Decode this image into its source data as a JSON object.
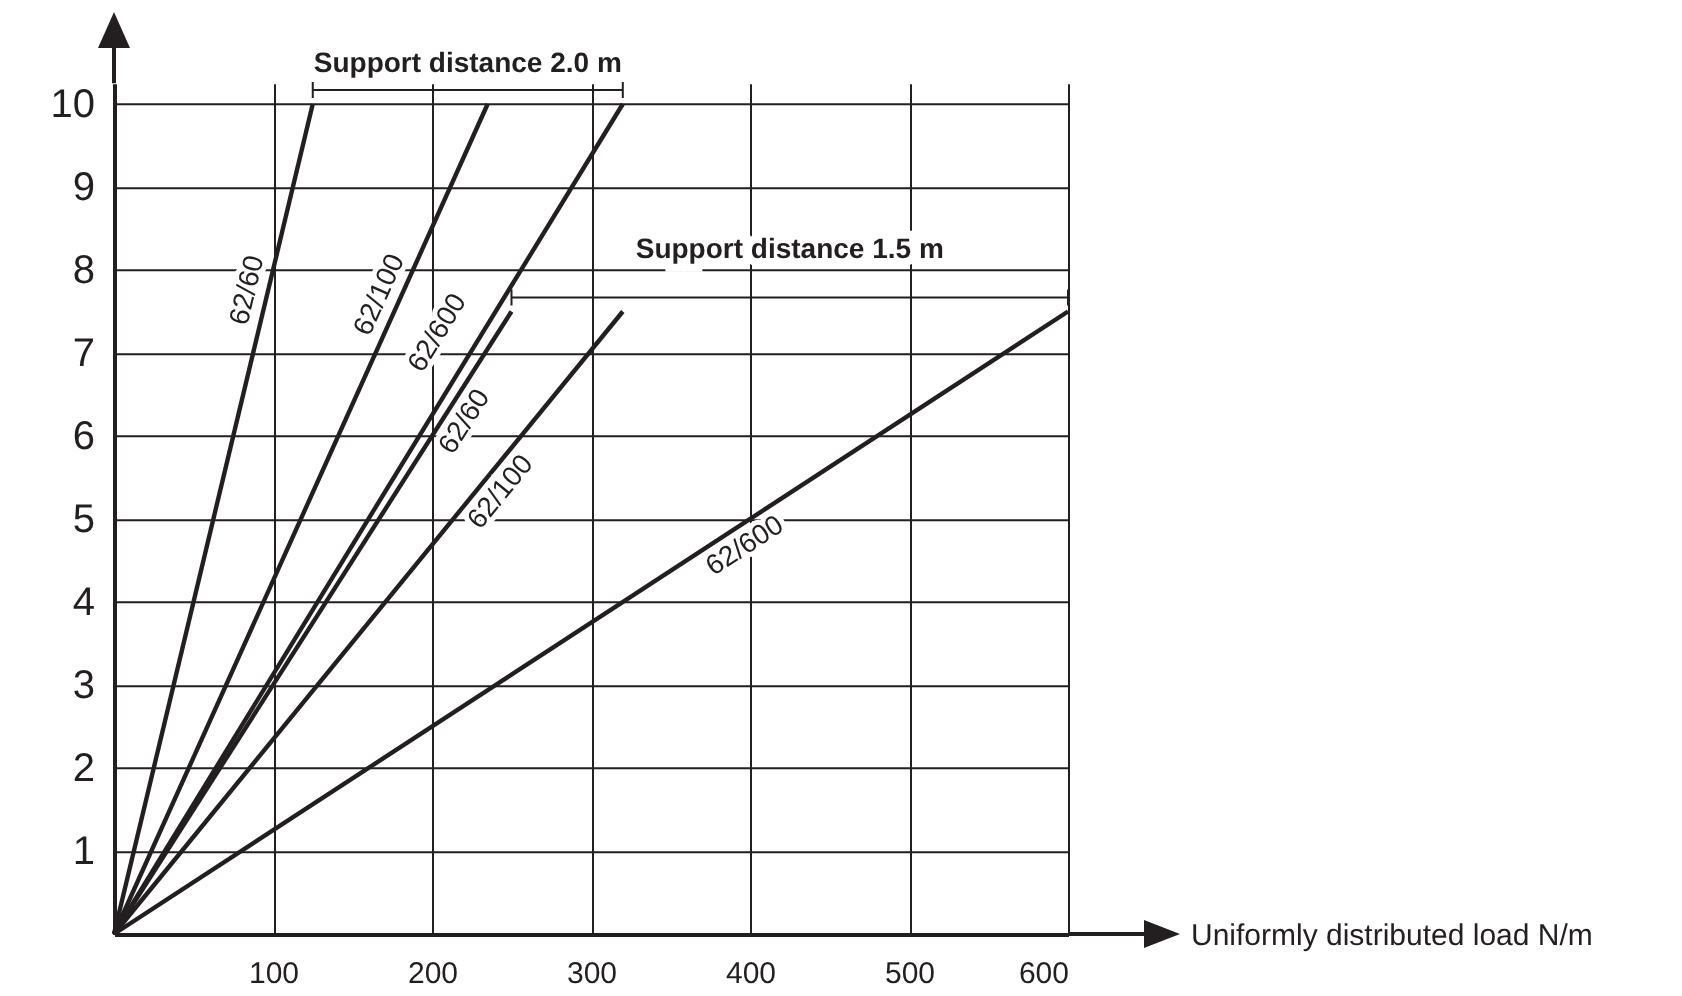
{
  "chart_data": {
    "type": "line",
    "xlabel": "Uniformly distributed load N/m",
    "annotations": [
      "Support distance 2.0 m",
      "Support distance 1.5 m"
    ],
    "xlim": [
      0,
      600
    ],
    "ylim": [
      0,
      10.25
    ],
    "xticks": [
      100,
      200,
      300,
      400,
      500,
      600
    ],
    "yticks": [
      1,
      2,
      3,
      4,
      5,
      6,
      7,
      8,
      9,
      10
    ],
    "grid": true,
    "legend": false,
    "line_style": "solid",
    "marker": "none",
    "series": [
      {
        "name": "62/60",
        "color": "#231f20",
        "x": [
          0,
          125
        ],
        "values": [
          0,
          10
        ]
      },
      {
        "name": "62/100",
        "color": "#231f20",
        "x": [
          0,
          235
        ],
        "values": [
          0,
          10
        ]
      },
      {
        "name": "62/600",
        "color": "#231f20",
        "x": [
          0,
          320
        ],
        "values": [
          0,
          10
        ]
      },
      {
        "name": "62/60",
        "color": "#231f20",
        "x": [
          0,
          250
        ],
        "values": [
          0,
          7.5
        ]
      },
      {
        "name": "62/100",
        "color": "#231f20",
        "x": [
          0,
          320
        ],
        "values": [
          0,
          7.5
        ]
      },
      {
        "name": "62/600",
        "color": "#231f20",
        "x": [
          0,
          600
        ],
        "values": [
          0,
          7.5
        ]
      }
    ]
  }
}
